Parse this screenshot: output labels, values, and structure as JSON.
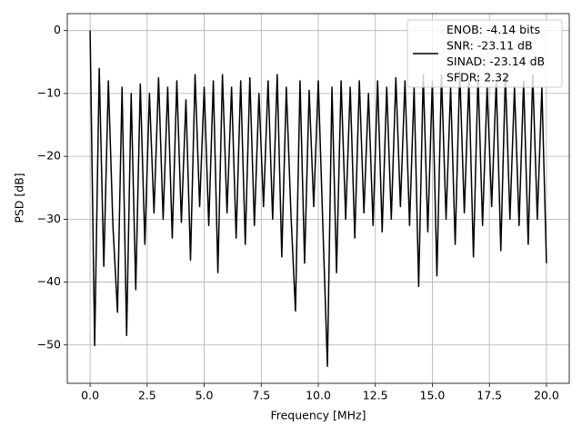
{
  "chart_data": {
    "type": "line",
    "xlabel": "Frequency [MHz]",
    "ylabel": "PSD [dB]",
    "x": [
      0,
      0.2,
      0.4,
      0.6,
      0.8,
      1.0,
      1.2,
      1.4,
      1.6,
      1.8,
      2.0,
      2.2,
      2.4,
      2.6,
      2.8,
      3.0,
      3.2,
      3.4,
      3.6,
      3.8,
      4.0,
      4.2,
      4.4,
      4.6,
      4.8,
      5.0,
      5.2,
      5.4,
      5.6,
      5.8,
      6.0,
      6.2,
      6.4,
      6.6,
      6.8,
      7.0,
      7.2,
      7.4,
      7.6,
      7.8,
      8.0,
      8.2,
      8.4,
      8.6,
      8.8,
      9.0,
      9.2,
      9.4,
      9.6,
      9.8,
      10.0,
      10.2,
      10.4,
      10.6,
      10.8,
      11.0,
      11.2,
      11.4,
      11.6,
      11.8,
      12.0,
      12.2,
      12.4,
      12.6,
      12.8,
      13.0,
      13.2,
      13.4,
      13.6,
      13.8,
      14.0,
      14.2,
      14.4,
      14.6,
      14.8,
      15.0,
      15.2,
      15.4,
      15.6,
      15.8,
      16.0,
      16.2,
      16.4,
      16.6,
      16.8,
      17.0,
      17.2,
      17.4,
      17.6,
      17.8,
      18.0,
      18.2,
      18.4,
      18.6,
      18.8,
      19.0,
      19.2,
      19.4,
      19.6,
      19.8,
      20.0
    ],
    "series": [
      {
        "name": "ENOB: -4.14 bits\nSNR: -23.11 dB\nSINAD: -23.14 dB\nSFDR: 2.32",
        "color": "#000000",
        "values": [
          0,
          -50.1,
          -6,
          -37.5,
          -8,
          -31,
          -44.8,
          -9,
          -48.5,
          -10,
          -41.2,
          -8.5,
          -34,
          -10,
          -29,
          -7.5,
          -30,
          -9,
          -33,
          -8,
          -30.5,
          -11,
          -36.5,
          -7,
          -28,
          -9,
          -31,
          -8,
          -38.5,
          -7,
          -29,
          -9,
          -33,
          -8,
          -34,
          -7.5,
          -31,
          -10,
          -28,
          -8,
          -30,
          -7,
          -36,
          -9,
          -29,
          -44.6,
          -8,
          -37,
          -9.5,
          -28,
          -8,
          -31,
          -53.4,
          -9,
          -38.5,
          -8,
          -30,
          -9,
          -33,
          -8,
          -29,
          -10,
          -31,
          -8,
          -32,
          -9,
          -30,
          -7.5,
          -28,
          -8,
          -31,
          -9,
          -40.7,
          -7,
          -32,
          -8,
          -39,
          -7,
          -30,
          -9,
          -34,
          -6.5,
          -29,
          -8,
          -36,
          -7,
          -31,
          -9,
          -28,
          -8,
          -35,
          -7,
          -30,
          -9,
          -31,
          -8,
          -34,
          -7,
          -30,
          -9,
          -37
        ]
      }
    ],
    "xlim": [
      -1,
      21
    ],
    "ylim": [
      -56.1,
      2.7
    ],
    "xticks": [
      {
        "value": 0,
        "label": "0.0"
      },
      {
        "value": 2.5,
        "label": "2.5"
      },
      {
        "value": 5,
        "label": "5.0"
      },
      {
        "value": 7.5,
        "label": "7.5"
      },
      {
        "value": 10,
        "label": "10.0"
      },
      {
        "value": 12.5,
        "label": "12.5"
      },
      {
        "value": 15,
        "label": "15.0"
      },
      {
        "value": 17.5,
        "label": "17.5"
      },
      {
        "value": 20,
        "label": "20.0"
      }
    ],
    "yticks": [
      0,
      {
        "value": -10,
        "label": "−10"
      },
      {
        "value": -20,
        "label": "−20"
      },
      {
        "value": -30,
        "label": "−30"
      },
      {
        "value": -40,
        "label": "−40"
      },
      {
        "value": -50,
        "label": "−50"
      }
    ],
    "grid": true,
    "legend": "upper right"
  }
}
